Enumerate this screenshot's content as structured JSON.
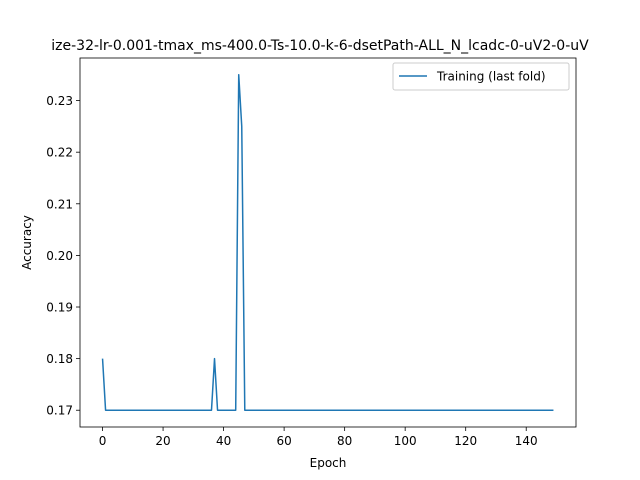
{
  "chart_data": {
    "type": "line",
    "title": "ize-32-lr-0.001-tmax_ms-400.0-Ts-10.0-k-6-dsetPath-ALL_N_lcadc-0-uV2-0-uV",
    "xlabel": "Epoch",
    "ylabel": "Accuracy",
    "xlim": [
      -7.45,
      156.45
    ],
    "ylim": [
      0.16675,
      0.23825
    ],
    "xticks": [
      0,
      20,
      40,
      60,
      80,
      100,
      120,
      140
    ],
    "yticks": [
      0.17,
      0.18,
      0.19,
      0.2,
      0.21,
      0.22,
      0.23
    ],
    "ytick_labels": [
      "0.17",
      "0.18",
      "0.19",
      "0.20",
      "0.21",
      "0.22",
      "0.23"
    ],
    "grid": false,
    "legend": {
      "placement": "upper right"
    },
    "series": [
      {
        "name": "Training (last fold)",
        "color": "#1f77b4",
        "x": [
          0,
          1,
          36,
          37,
          38,
          44,
          45,
          46,
          47,
          149
        ],
        "y": [
          0.18,
          0.17,
          0.17,
          0.18,
          0.17,
          0.17,
          0.235,
          0.225,
          0.17,
          0.17
        ]
      }
    ]
  }
}
